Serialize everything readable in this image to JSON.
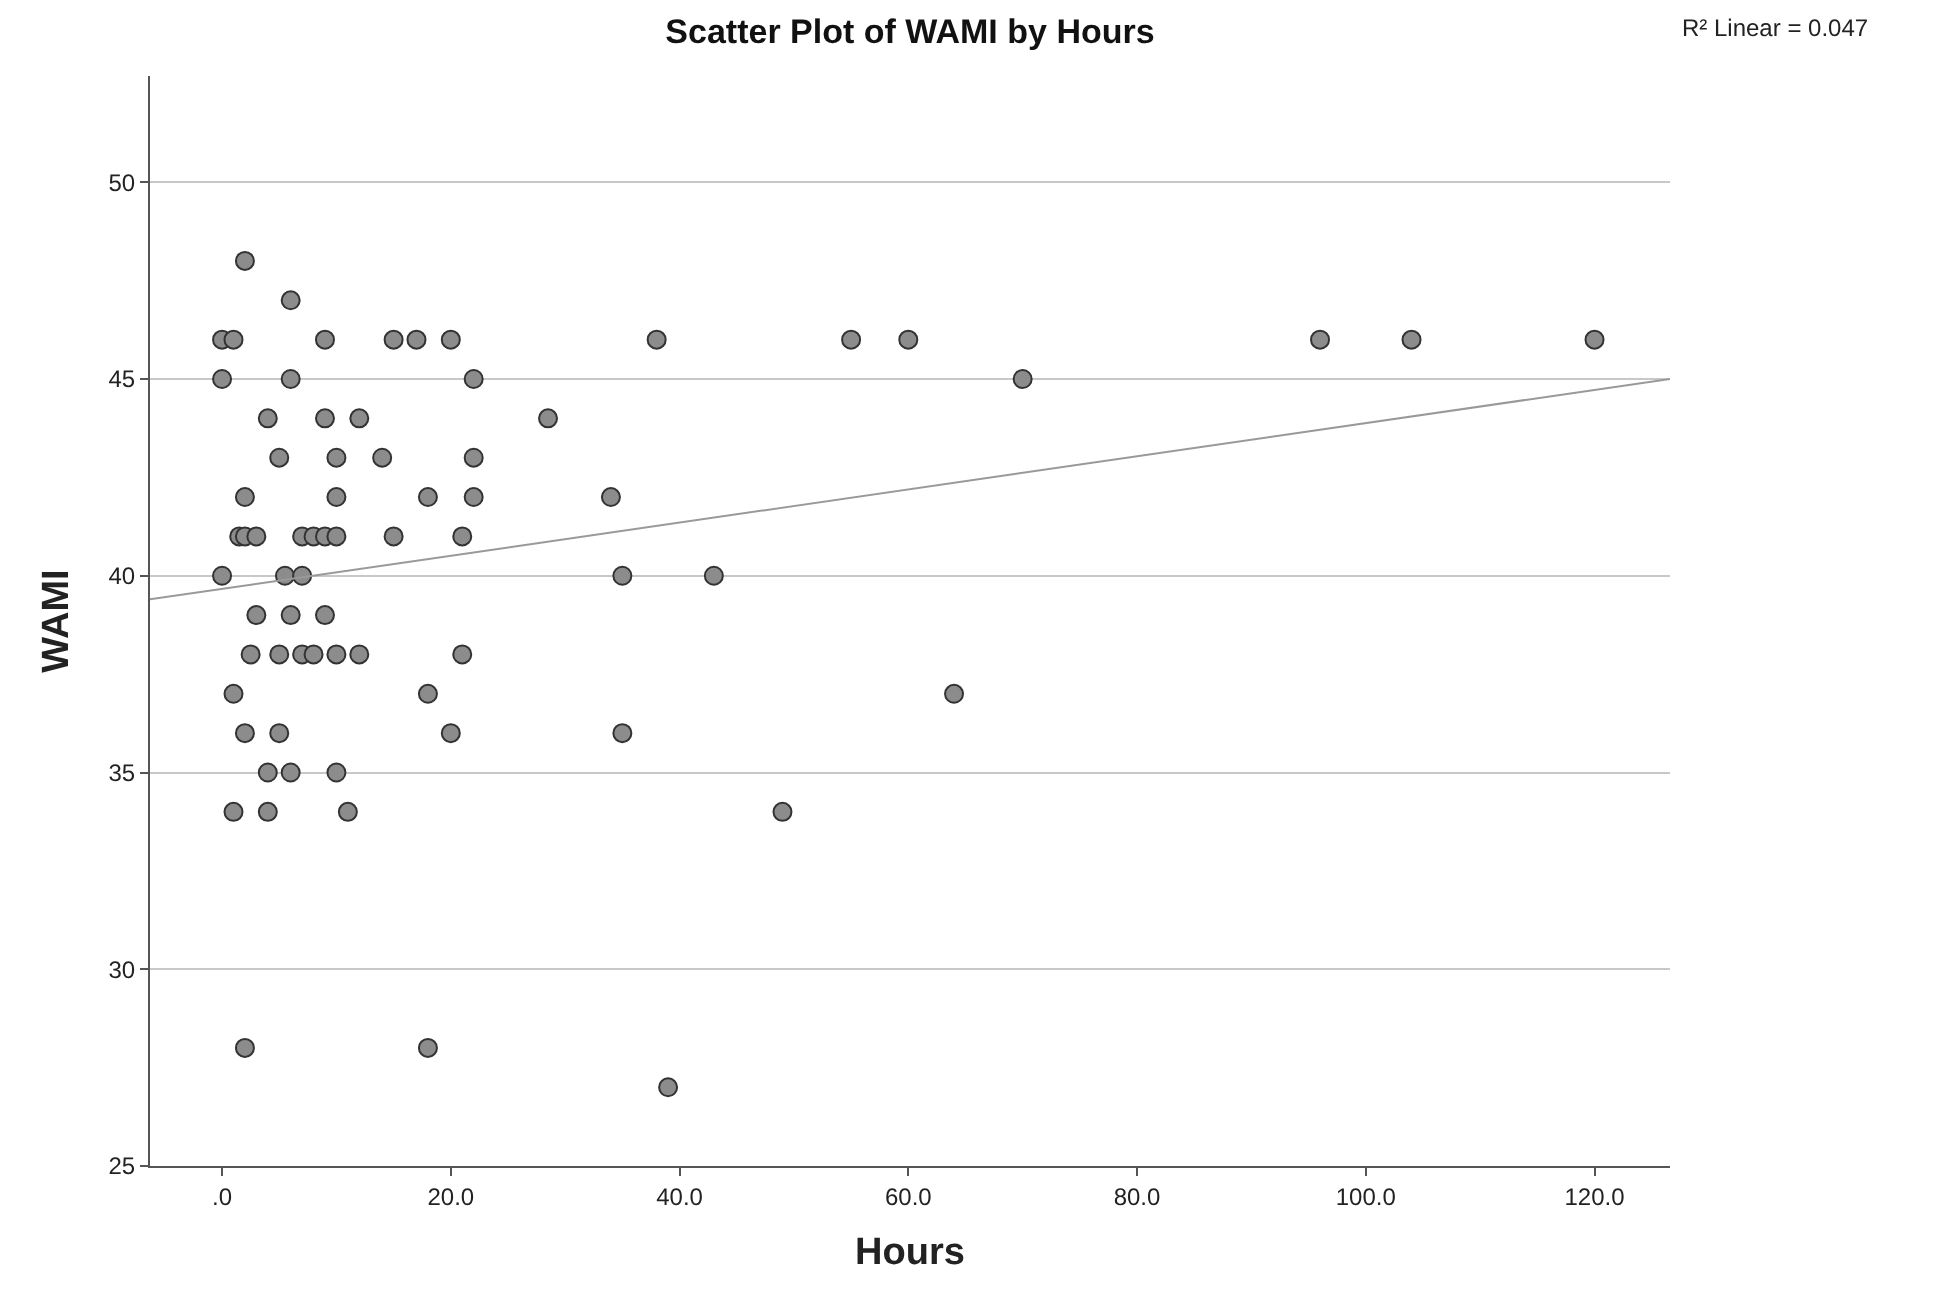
{
  "chart_data": {
    "type": "scatter",
    "title": "Scatter Plot of WAMI by Hours",
    "xlabel": "Hours",
    "ylabel": "WAMI",
    "annotations": [
      "R² Linear = 0.047"
    ],
    "xlim": [
      -6.3,
      126.6
    ],
    "ylim": [
      25,
      52.7
    ],
    "xticks": [
      {
        "value": 0,
        "label": ".0"
      },
      {
        "value": 20,
        "label": "20.0"
      },
      {
        "value": 40,
        "label": "40.0"
      },
      {
        "value": 60,
        "label": "60.0"
      },
      {
        "value": 80,
        "label": "80.0"
      },
      {
        "value": 100,
        "label": "100.0"
      },
      {
        "value": 120,
        "label": "120.0"
      }
    ],
    "yticks": [
      25,
      30,
      35,
      40,
      45,
      50
    ],
    "grid": "y",
    "series": [
      {
        "color": "#8c8c8c",
        "marker": "circle",
        "x": [
          2,
          6,
          0,
          1,
          9,
          15,
          17,
          20,
          38,
          55,
          60,
          96,
          104,
          120,
          0,
          6,
          22,
          70,
          4,
          9,
          12,
          28.5,
          5,
          10,
          14,
          22,
          2,
          10,
          18,
          22,
          34,
          1.5,
          2,
          3,
          7,
          8,
          9,
          10,
          15,
          21,
          0,
          5.5,
          7,
          35,
          43,
          3,
          6,
          9,
          2.5,
          5,
          7,
          8,
          10,
          12,
          21,
          1,
          18,
          64,
          2,
          5,
          20,
          35,
          4,
          6,
          10,
          1,
          4,
          11,
          49,
          2,
          18,
          39
        ],
        "values": [
          48,
          47,
          46,
          46,
          46,
          46,
          46,
          46,
          46,
          46,
          46,
          46,
          46,
          46,
          45,
          45,
          45,
          45,
          44,
          44,
          44,
          44,
          43,
          43,
          43,
          43,
          42,
          42,
          42,
          42,
          42,
          41,
          41,
          41,
          41,
          41,
          41,
          41,
          41,
          41,
          40,
          40,
          40,
          40,
          40,
          39,
          39,
          39,
          38,
          38,
          38,
          38,
          38,
          38,
          38,
          37,
          37,
          37,
          36,
          36,
          36,
          36,
          35,
          35,
          35,
          34,
          34,
          34,
          34,
          28,
          28,
          27
        ]
      },
      {
        "type": "line",
        "color": "#999999",
        "line_style": "solid",
        "marker": "none",
        "x": [
          -6.3,
          126.6
        ],
        "values": [
          39.4,
          45.0
        ]
      }
    ]
  }
}
